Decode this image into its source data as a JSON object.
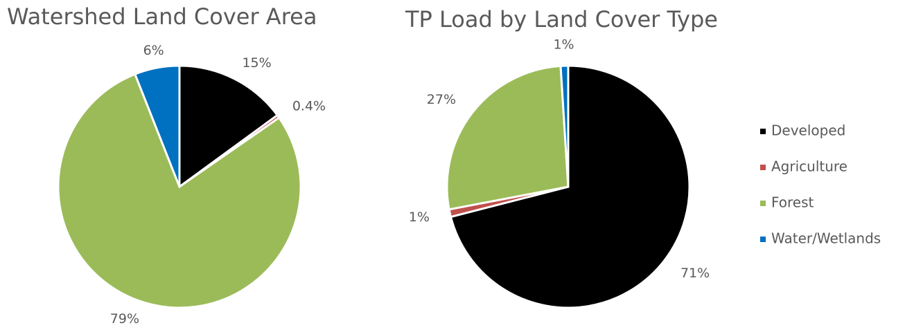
{
  "chart_data": [
    {
      "type": "pie",
      "title": "Watershed Land Cover Area",
      "values": [
        15,
        0.4,
        79,
        6
      ],
      "value_labels": [
        "15%",
        "0.4%",
        "79%",
        "6%"
      ],
      "colors": [
        "#000000",
        "#c0504d",
        "#9bbb59",
        "#0070c0"
      ]
    },
    {
      "type": "pie",
      "title": "TP Load by Land Cover Type",
      "categories": [
        "Developed",
        "Agriculture",
        "Forest",
        "Water/Wetlands"
      ],
      "values": [
        71,
        1,
        27,
        1
      ],
      "value_labels": [
        "71%",
        "1%",
        "27%",
        "1%"
      ],
      "colors": [
        "#000000",
        "#c0504d",
        "#9bbb59",
        "#0070c0"
      ],
      "legend": "right"
    }
  ]
}
